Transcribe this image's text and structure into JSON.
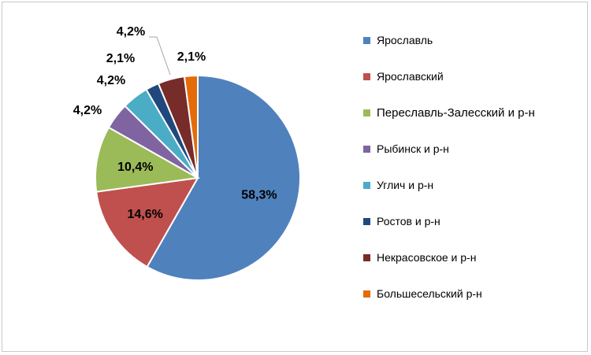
{
  "chart_data": {
    "type": "pie",
    "title": "",
    "legend_position": "right",
    "slices": [
      {
        "label": "Ярославль",
        "value": 58.3,
        "display": "58,3%",
        "color": "#4f81bd"
      },
      {
        "label": "Ярославский",
        "value": 14.6,
        "display": "14,6%",
        "color": "#c0504d"
      },
      {
        "label": "Переславль-Залесский и р-н",
        "value": 10.4,
        "display": "10,4%",
        "color": "#9bbb59"
      },
      {
        "label": "Рыбинск и р-н",
        "value": 4.2,
        "display": "4,2%",
        "color": "#8064a2"
      },
      {
        "label": "Углич и р-н",
        "value": 4.2,
        "display": "4,2%",
        "color": "#4bacc6"
      },
      {
        "label": "Ростов и р-н",
        "value": 2.1,
        "display": "2,1%",
        "color": "#1f497d"
      },
      {
        "label": "Некрасовское и р-н",
        "value": 4.2,
        "display": "4,2%",
        "color": "#772c2a"
      },
      {
        "label": "Большесельский р-н",
        "value": 2.1,
        "display": "2,1%",
        "color": "#e36c09"
      }
    ]
  }
}
